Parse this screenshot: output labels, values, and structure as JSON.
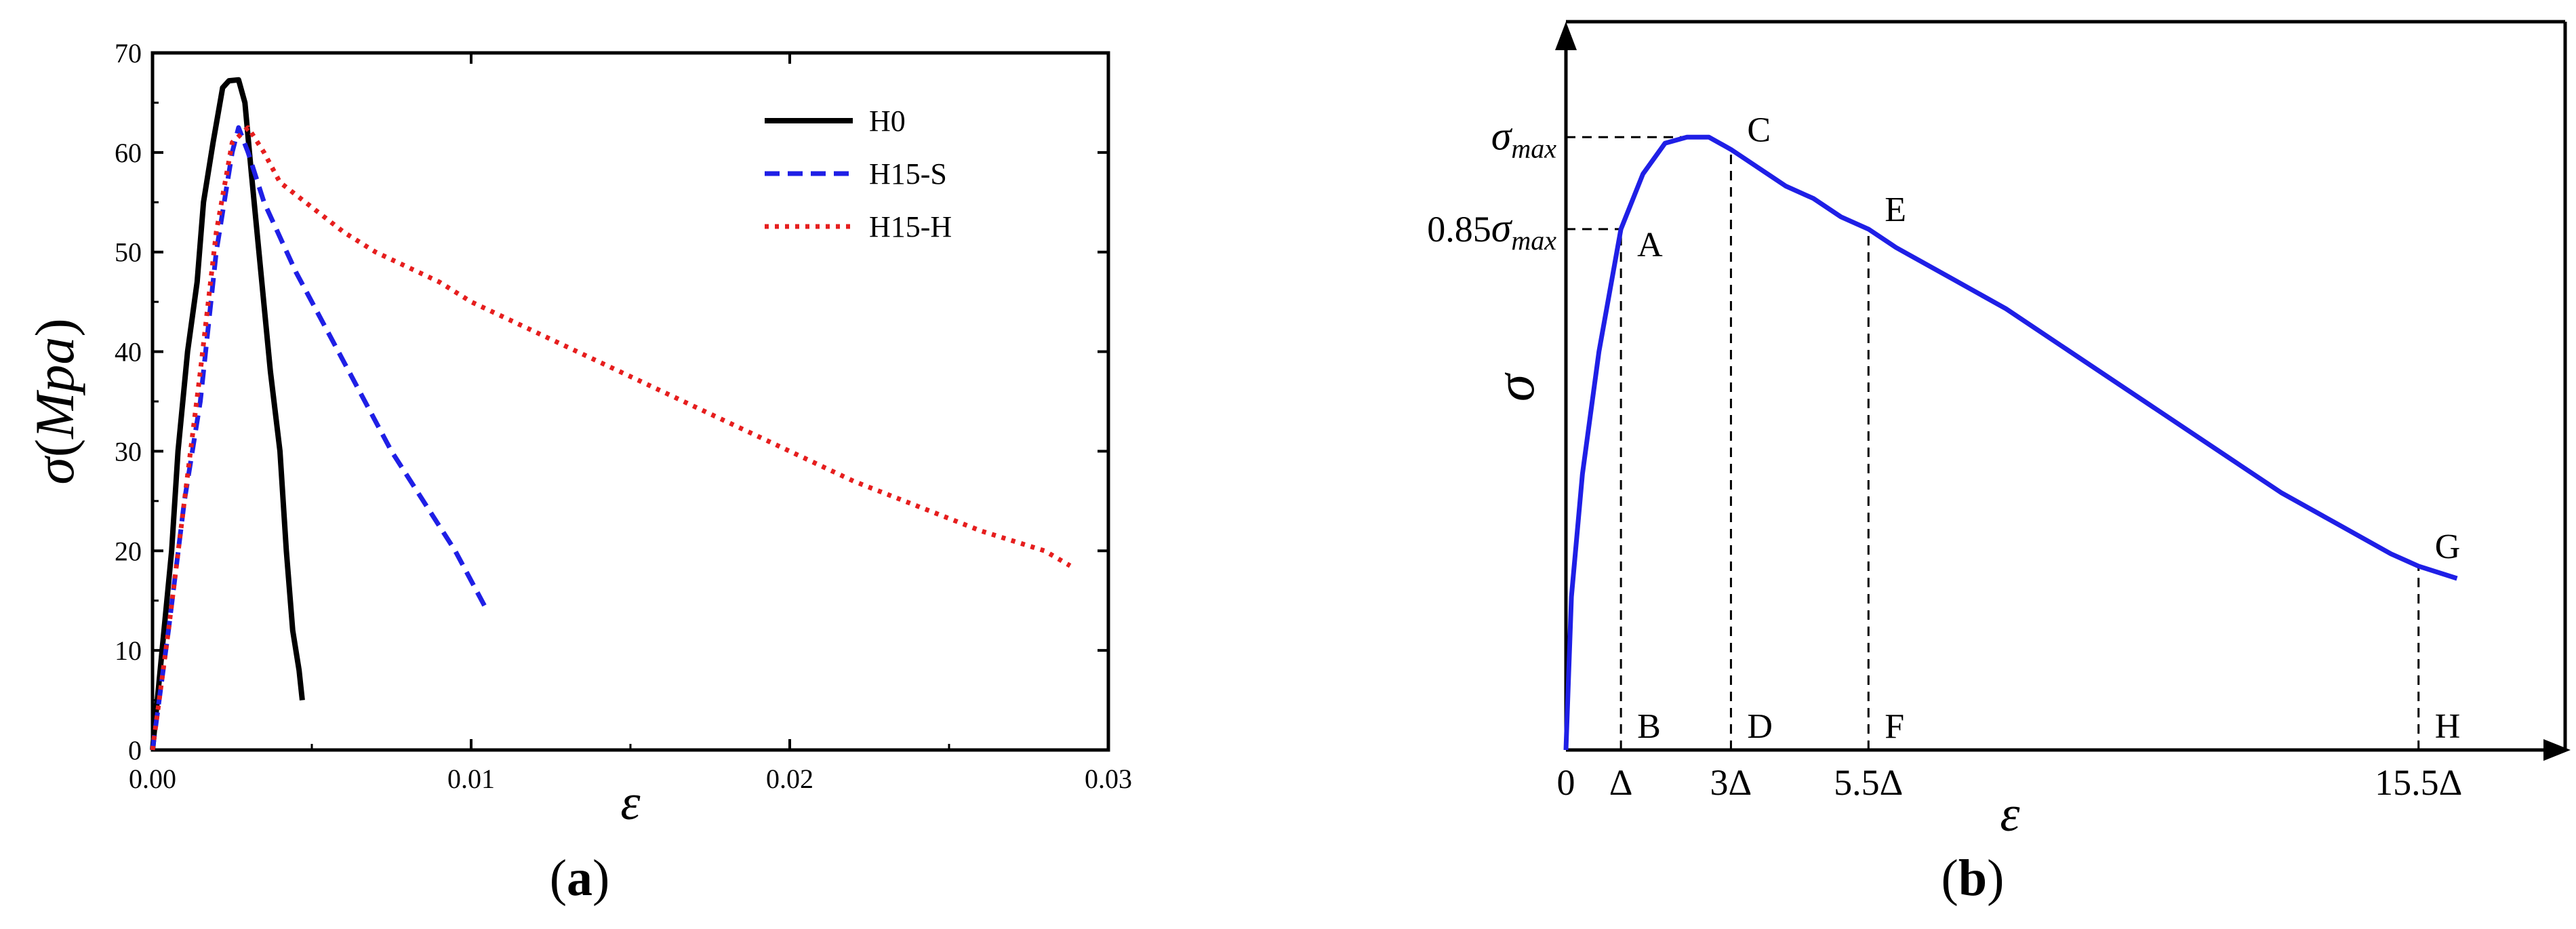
{
  "chart_data": [
    {
      "type": "line",
      "caption": "(a)",
      "caption_parts": {
        "open": "(",
        "letter": "a",
        "close": ")"
      },
      "xlabel": "ε",
      "ylabel": "σ(Mpa)",
      "ylabel_parts": {
        "sym": "σ",
        "open": "(",
        "unit": "Mpa",
        "close": ")"
      },
      "xlim": [
        0,
        0.03
      ],
      "ylim": [
        0,
        70
      ],
      "xticks": [
        0,
        0.01,
        0.02,
        0.03
      ],
      "xtick_labels": [
        "0.00",
        "0.01",
        "0.02",
        "0.03"
      ],
      "yticks": [
        0,
        10,
        20,
        30,
        40,
        50,
        60,
        70
      ],
      "ytick_labels": [
        "0",
        "10",
        "20",
        "30",
        "40",
        "50",
        "60",
        "70"
      ],
      "legend_position": "top-right",
      "series": [
        {
          "name": "H0",
          "color": "#000000",
          "style": "solid",
          "points": [
            [
              0.0,
              0
            ],
            [
              0.0003,
              10
            ],
            [
              0.0006,
              20
            ],
            [
              0.0008,
              30
            ],
            [
              0.0011,
              40
            ],
            [
              0.0014,
              47
            ],
            [
              0.0016,
              55
            ],
            [
              0.0019,
              61
            ],
            [
              0.0022,
              66.5
            ],
            [
              0.0024,
              67.2
            ],
            [
              0.0027,
              67.3
            ],
            [
              0.0029,
              65
            ],
            [
              0.0031,
              58
            ],
            [
              0.0034,
              48
            ],
            [
              0.0037,
              38
            ],
            [
              0.004,
              30
            ],
            [
              0.0042,
              20
            ],
            [
              0.0044,
              12
            ],
            [
              0.0046,
              8
            ],
            [
              0.0047,
              5
            ]
          ]
        },
        {
          "name": "H15-S",
          "color": "#1f1fe6",
          "style": "dashed",
          "points": [
            [
              0.0,
              0
            ],
            [
              0.0005,
              12
            ],
            [
              0.001,
              25
            ],
            [
              0.0015,
              35
            ],
            [
              0.002,
              50
            ],
            [
              0.0025,
              60
            ],
            [
              0.0027,
              62.5
            ],
            [
              0.003,
              60
            ],
            [
              0.0035,
              55
            ],
            [
              0.0045,
              48
            ],
            [
              0.0055,
              42
            ],
            [
              0.0065,
              36
            ],
            [
              0.0075,
              30
            ],
            [
              0.0085,
              25
            ],
            [
              0.0095,
              20
            ],
            [
              0.0105,
              14
            ]
          ]
        },
        {
          "name": "H15-H",
          "color": "#e61e1e",
          "style": "dotted",
          "points": [
            [
              0.0,
              0
            ],
            [
              0.0005,
              12
            ],
            [
              0.001,
              25
            ],
            [
              0.0015,
              38
            ],
            [
              0.002,
              52
            ],
            [
              0.0025,
              61
            ],
            [
              0.003,
              62.5
            ],
            [
              0.0035,
              60
            ],
            [
              0.004,
              57
            ],
            [
              0.005,
              54.5
            ],
            [
              0.006,
              52
            ],
            [
              0.007,
              50
            ],
            [
              0.008,
              48.5
            ],
            [
              0.009,
              47
            ],
            [
              0.01,
              45
            ],
            [
              0.012,
              42
            ],
            [
              0.014,
              39
            ],
            [
              0.016,
              36
            ],
            [
              0.018,
              33
            ],
            [
              0.02,
              30
            ],
            [
              0.022,
              27
            ],
            [
              0.024,
              24.5
            ],
            [
              0.026,
              22
            ],
            [
              0.028,
              20
            ],
            [
              0.0288,
              18.5
            ]
          ]
        }
      ]
    },
    {
      "type": "line",
      "caption": "(b)",
      "caption_parts": {
        "open": "(",
        "letter": "b",
        "close": ")"
      },
      "xlabel": "ε",
      "ylabel": "σ",
      "x_unit": "Δ",
      "xlim": [
        0,
        17.5
      ],
      "ylim": [
        0,
        1.08
      ],
      "xticks": [
        0,
        1,
        3,
        5.5,
        15.5
      ],
      "xtick_labels": [
        "0",
        "Δ",
        "3Δ",
        "5.5Δ",
        "15.5Δ"
      ],
      "yticks": [
        {
          "value": 1.0,
          "base": "σ",
          "sub": "max"
        },
        {
          "value": 0.85,
          "prefix": "0.85",
          "base": "σ",
          "sub": "max"
        }
      ],
      "color": "#1f1fe6",
      "curve": [
        [
          0,
          0
        ],
        [
          0.1,
          0.25
        ],
        [
          0.3,
          0.45
        ],
        [
          0.6,
          0.65
        ],
        [
          1.0,
          0.85
        ],
        [
          1.4,
          0.94
        ],
        [
          1.8,
          0.99
        ],
        [
          2.2,
          1.0
        ],
        [
          2.6,
          1.0
        ],
        [
          3.0,
          0.98
        ],
        [
          3.5,
          0.95
        ],
        [
          4.0,
          0.92
        ],
        [
          4.5,
          0.9
        ],
        [
          5.0,
          0.87
        ],
        [
          5.5,
          0.85
        ],
        [
          6.0,
          0.82
        ],
        [
          7.0,
          0.77
        ],
        [
          8.0,
          0.72
        ],
        [
          9.0,
          0.66
        ],
        [
          10.0,
          0.6
        ],
        [
          11.0,
          0.54
        ],
        [
          12.0,
          0.48
        ],
        [
          13.0,
          0.42
        ],
        [
          14.0,
          0.37
        ],
        [
          15.0,
          0.32
        ],
        [
          15.5,
          0.3
        ],
        [
          16.2,
          0.28
        ]
      ],
      "guides": [
        {
          "x": 1,
          "y": 0.85,
          "top_label": "A",
          "bottom_label": "B"
        },
        {
          "x": 3,
          "y": 0.98,
          "top_label": "C",
          "bottom_label": "D"
        },
        {
          "x": 5.5,
          "y": 0.85,
          "top_label": "E",
          "bottom_label": "F"
        },
        {
          "x": 15.5,
          "y": 0.3,
          "top_label": "G",
          "bottom_label": "H"
        }
      ]
    }
  ]
}
